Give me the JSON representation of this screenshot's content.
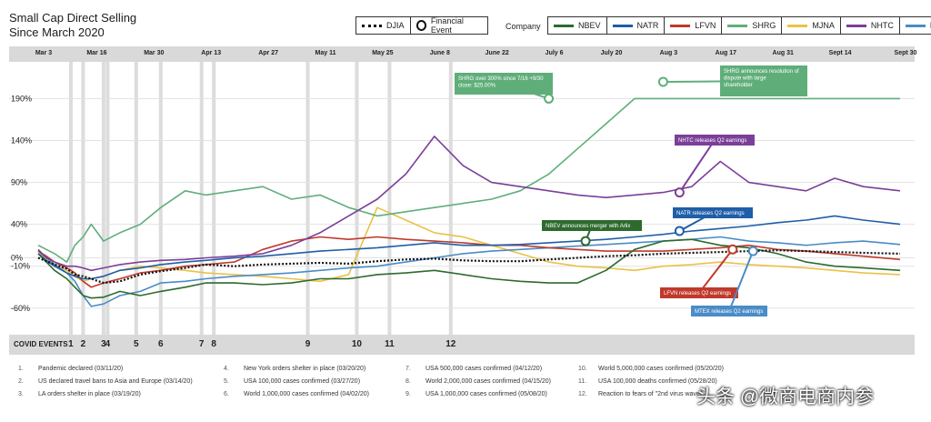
{
  "title": [
    "Small Cap Direct Selling",
    "Since March 2020"
  ],
  "legend_main": [
    {
      "label": "DJIA",
      "icon": "dotted-line"
    },
    {
      "label": "Financial Event",
      "icon": "circle-marker"
    }
  ],
  "company_label": "Company",
  "companies": [
    {
      "label": "NBEV",
      "color": "#2d6a2e"
    },
    {
      "label": "NATR",
      "color": "#1f5ea8"
    },
    {
      "label": "LFVN",
      "color": "#c0392b"
    },
    {
      "label": "SHRG",
      "color": "#5fae7a"
    },
    {
      "label": "MJNA",
      "color": "#e9c246"
    },
    {
      "label": "NHTC",
      "color": "#7b3f99"
    },
    {
      "label": "MTEX",
      "color": "#4a8cc7"
    }
  ],
  "date_ticks": [
    "Mar 3",
    "Mar 16",
    "Mar 30",
    "Apr 13",
    "Apr 27",
    "May 11",
    "May 25",
    "June 8",
    "June 22",
    "July 6",
    "July 20",
    "Aug 3",
    "Aug 17",
    "Aug 31",
    "Sept 14",
    "Sept 30"
  ],
  "covid_title": "COVID EVENTS",
  "covid_events": [
    "Pandemic declared (03/11/20)",
    "US declared travel bans to Asia and Europe (03/14/20)",
    "LA orders shelter in place (03/19/20)",
    "New York orders shelter in place (03/20/20)",
    "USA 100,000 cases confirmed (03/27/20)",
    "World 1,000,000 cases confirmed (04/02/20)",
    "USA 500,000 cases confirmed (04/12/20)",
    "World 2,000,000 cases confirmed (04/15/20)",
    "USA 1,000,000 cases confirmed (05/08/20)",
    "World 5,000,000 cases confirmed (05/20/20)",
    "USA 100,000 deaths confirmed (05/28/20)",
    "Reaction to fears of \"2nd virus wave\""
  ],
  "watermark": "头条 @微商电商内参",
  "chart_data": {
    "type": "line",
    "x_dates": [
      "2020-03-03",
      "2020-03-05",
      "2020-03-07",
      "2020-03-10",
      "2020-03-12",
      "2020-03-14",
      "2020-03-16",
      "2020-03-19",
      "2020-03-23",
      "2020-03-28",
      "2020-04-02",
      "2020-04-08",
      "2020-04-13",
      "2020-04-20",
      "2020-04-27",
      "2020-05-04",
      "2020-05-11",
      "2020-05-18",
      "2020-05-25",
      "2020-06-01",
      "2020-06-08",
      "2020-06-15",
      "2020-06-22",
      "2020-06-29",
      "2020-07-06",
      "2020-07-13",
      "2020-07-20",
      "2020-07-27",
      "2020-08-03",
      "2020-08-10",
      "2020-08-17",
      "2020-08-24",
      "2020-08-31",
      "2020-09-07",
      "2020-09-14",
      "2020-09-21",
      "2020-09-30"
    ],
    "y_ticks": [
      190,
      140,
      90,
      40,
      0,
      -10,
      -60
    ],
    "y_tick_labels": [
      "190%",
      "140%",
      "90%",
      "40%",
      "0%",
      "-10%",
      "-60%"
    ],
    "ylim": [
      -70,
      210
    ],
    "series": [
      {
        "name": "DJIA",
        "values": [
          0,
          -4,
          -8,
          -13,
          -20,
          -22,
          -25,
          -30,
          -28,
          -20,
          -16,
          -12,
          -8,
          -10,
          -8,
          -7,
          -6,
          -7,
          -4,
          -2,
          -1,
          -3,
          -4,
          -4,
          -2,
          0,
          2,
          3,
          5,
          6,
          7,
          8,
          9,
          8,
          7,
          6,
          5
        ]
      },
      {
        "name": "NBEV",
        "values": [
          5,
          -5,
          -15,
          -25,
          -35,
          -45,
          -48,
          -47,
          -40,
          -45,
          -40,
          -35,
          -30,
          -30,
          -32,
          -30,
          -25,
          -25,
          -20,
          -18,
          -15,
          -20,
          -25,
          -28,
          -30,
          -30,
          -15,
          10,
          20,
          22,
          15,
          12,
          5,
          -5,
          -10,
          -12,
          -15
        ]
      },
      {
        "name": "NATR",
        "values": [
          5,
          -3,
          -10,
          -18,
          -22,
          -25,
          -25,
          -22,
          -15,
          -12,
          -8,
          -5,
          -3,
          0,
          2,
          5,
          8,
          10,
          12,
          15,
          18,
          15,
          15,
          16,
          18,
          20,
          22,
          25,
          28,
          32,
          35,
          38,
          42,
          45,
          50,
          45,
          40
        ]
      },
      {
        "name": "LFVN",
        "values": [
          8,
          2,
          -5,
          -12,
          -18,
          -28,
          -35,
          -30,
          -25,
          -18,
          -15,
          -10,
          -8,
          -5,
          10,
          20,
          25,
          22,
          25,
          22,
          20,
          18,
          15,
          15,
          12,
          10,
          8,
          8,
          8,
          10,
          12,
          15,
          10,
          8,
          5,
          2,
          -2
        ]
      },
      {
        "name": "SHRG",
        "values": [
          15,
          10,
          5,
          -5,
          15,
          25,
          40,
          20,
          30,
          40,
          60,
          80,
          75,
          80,
          85,
          70,
          75,
          60,
          50,
          55,
          60,
          65,
          70,
          80,
          100,
          130,
          160,
          190,
          190,
          190,
          190,
          190,
          190,
          190,
          190,
          190,
          190
        ]
      },
      {
        "name": "MJNA",
        "values": [
          5,
          0,
          -8,
          -15,
          -22,
          -28,
          -25,
          -22,
          -15,
          -10,
          -12,
          -15,
          -18,
          -20,
          -22,
          -25,
          -28,
          -20,
          60,
          45,
          30,
          25,
          15,
          5,
          -5,
          -10,
          -12,
          -15,
          -10,
          -8,
          -5,
          -8,
          -10,
          -12,
          -15,
          -18,
          -20
        ]
      },
      {
        "name": "NHTC",
        "values": [
          10,
          0,
          -5,
          -10,
          -10,
          -12,
          -15,
          -12,
          -8,
          -5,
          -3,
          -2,
          0,
          2,
          5,
          15,
          30,
          50,
          70,
          100,
          145,
          110,
          90,
          85,
          80,
          75,
          72,
          75,
          78,
          85,
          115,
          90,
          85,
          80,
          95,
          85,
          80
        ]
      },
      {
        "name": "MTEX",
        "values": [
          8,
          0,
          -8,
          -18,
          -28,
          -45,
          -58,
          -55,
          -45,
          -40,
          -30,
          -28,
          -25,
          -22,
          -20,
          -18,
          -15,
          -12,
          -10,
          -5,
          0,
          5,
          8,
          10,
          12,
          14,
          16,
          18,
          20,
          22,
          25,
          20,
          18,
          15,
          18,
          20,
          16
        ]
      }
    ],
    "vertical_event_lines": [
      {
        "num": "1",
        "date": "2020-03-11"
      },
      {
        "num": "2",
        "date": "2020-03-14"
      },
      {
        "num": "3",
        "date": "2020-03-19"
      },
      {
        "num": "4",
        "date": "2020-03-20"
      },
      {
        "num": "5",
        "date": "2020-03-27"
      },
      {
        "num": "6",
        "date": "2020-04-02"
      },
      {
        "num": "7",
        "date": "2020-04-12"
      },
      {
        "num": "8",
        "date": "2020-04-15"
      },
      {
        "num": "9",
        "date": "2020-05-08"
      },
      {
        "num": "10",
        "date": "2020-05-20"
      },
      {
        "num": "11",
        "date": "2020-05-28"
      },
      {
        "num": "12",
        "date": "2020-06-12"
      }
    ],
    "annotations": [
      {
        "text": "SHRG over 300% since 7/16 +9/30 close: $25.00%",
        "date": "2020-07-06",
        "y": 190,
        "color": "#5fae7a"
      },
      {
        "text": "SHRG announces resolution of dispute with large shareholder",
        "date": "2020-08-03",
        "y": 210,
        "color": "#5fae7a"
      },
      {
        "text": "NHTC releases Q2 earnings",
        "date": "2020-08-07",
        "y": 78,
        "color": "#7b3f99"
      },
      {
        "text": "NATR releases Q2 earnings",
        "date": "2020-08-07",
        "y": 32,
        "color": "#1f5ea8"
      },
      {
        "text": "NBEV announces merger with Arlix",
        "date": "2020-07-15",
        "y": 20,
        "color": "#2d6a2e"
      },
      {
        "text": "LFVN releases Q2 earnings",
        "date": "2020-08-20",
        "y": 10,
        "color": "#c0392b"
      },
      {
        "text": "MTEX releases Q2 earnings",
        "date": "2020-08-25",
        "y": 8,
        "color": "#4a8cc7"
      }
    ],
    "grid": true
  }
}
